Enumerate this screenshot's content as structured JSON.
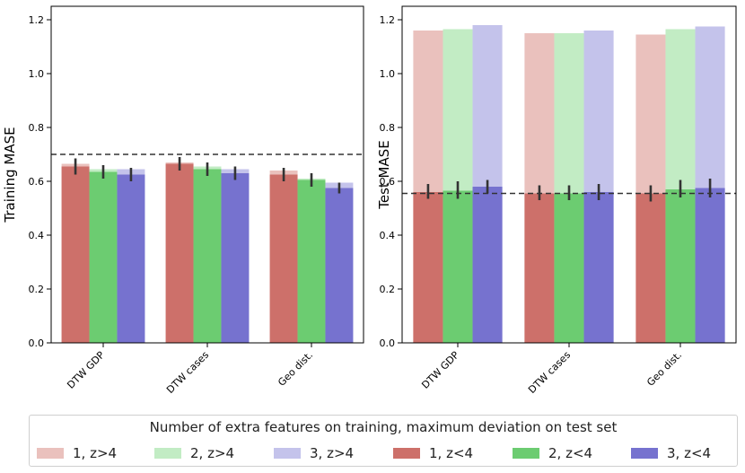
{
  "chart_data": [
    {
      "type": "bar",
      "ylabel": "Training MASE",
      "xlabel": "",
      "categories": [
        "DTW GDP",
        "DTW cases",
        "Geo dist."
      ],
      "ylim": [
        0,
        1.25
      ],
      "yticks": [
        "0.0",
        "0.2",
        "0.4",
        "0.6",
        "0.8",
        "1.0",
        "1.2"
      ],
      "reference_line": 0.7,
      "series": [
        {
          "name": "1, z>4",
          "values": [
            0.665,
            0.67,
            0.64
          ]
        },
        {
          "name": "2, z>4",
          "values": [
            0.645,
            0.655,
            0.61
          ]
        },
        {
          "name": "3, z>4",
          "values": [
            0.645,
            0.645,
            0.595
          ]
        },
        {
          "name": "1, z<4",
          "values": [
            0.655,
            0.665,
            0.625
          ]
        },
        {
          "name": "2, z<4",
          "values": [
            0.635,
            0.645,
            0.605
          ]
        },
        {
          "name": "3, z<4",
          "values": [
            0.625,
            0.63,
            0.575
          ]
        }
      ],
      "error_bars": {
        "1, z<4": [
          [
            0.625,
            0.685
          ],
          [
            0.64,
            0.69
          ],
          [
            0.6,
            0.65
          ]
        ],
        "2, z<4": [
          [
            0.61,
            0.66
          ],
          [
            0.62,
            0.67
          ],
          [
            0.58,
            0.63
          ]
        ],
        "3, z<4": [
          [
            0.6,
            0.65
          ],
          [
            0.605,
            0.655
          ],
          [
            0.555,
            0.595
          ]
        ]
      }
    },
    {
      "type": "bar",
      "ylabel": "Test MASE",
      "xlabel": "",
      "categories": [
        "DTW GDP",
        "DTW cases",
        "Geo dist."
      ],
      "ylim": [
        0,
        1.25
      ],
      "yticks": [
        "0.0",
        "0.2",
        "0.4",
        "0.6",
        "0.8",
        "1.0",
        "1.2"
      ],
      "reference_line": 0.555,
      "series": [
        {
          "name": "1, z>4",
          "values": [
            1.16,
            1.15,
            1.145
          ]
        },
        {
          "name": "2, z>4",
          "values": [
            1.165,
            1.15,
            1.165
          ]
        },
        {
          "name": "3, z>4",
          "values": [
            1.18,
            1.16,
            1.175
          ]
        },
        {
          "name": "1, z<4",
          "values": [
            0.56,
            0.555,
            0.555
          ]
        },
        {
          "name": "2, z<4",
          "values": [
            0.565,
            0.555,
            0.57
          ]
        },
        {
          "name": "3, z<4",
          "values": [
            0.58,
            0.56,
            0.575
          ]
        }
      ],
      "error_bars": {
        "1, z<4": [
          [
            0.535,
            0.59
          ],
          [
            0.53,
            0.585
          ],
          [
            0.525,
            0.585
          ]
        ],
        "2, z<4": [
          [
            0.535,
            0.6
          ],
          [
            0.53,
            0.585
          ],
          [
            0.54,
            0.605
          ]
        ],
        "3, z<4": [
          [
            0.555,
            0.605
          ],
          [
            0.53,
            0.59
          ],
          [
            0.54,
            0.61
          ]
        ]
      }
    }
  ],
  "legend": {
    "title": "Number of extra features on training, maximum deviation on test set",
    "items": [
      {
        "label": "1, z>4",
        "color": "#eac1bd"
      },
      {
        "label": "2, z>4",
        "color": "#c2ecc4"
      },
      {
        "label": "3, z>4",
        "color": "#c4c3eb"
      },
      {
        "label": "1, z<4",
        "color": "#cd706a"
      },
      {
        "label": "2, z<4",
        "color": "#6ccc71"
      },
      {
        "label": "3, z<4",
        "color": "#7672cf"
      }
    ]
  }
}
